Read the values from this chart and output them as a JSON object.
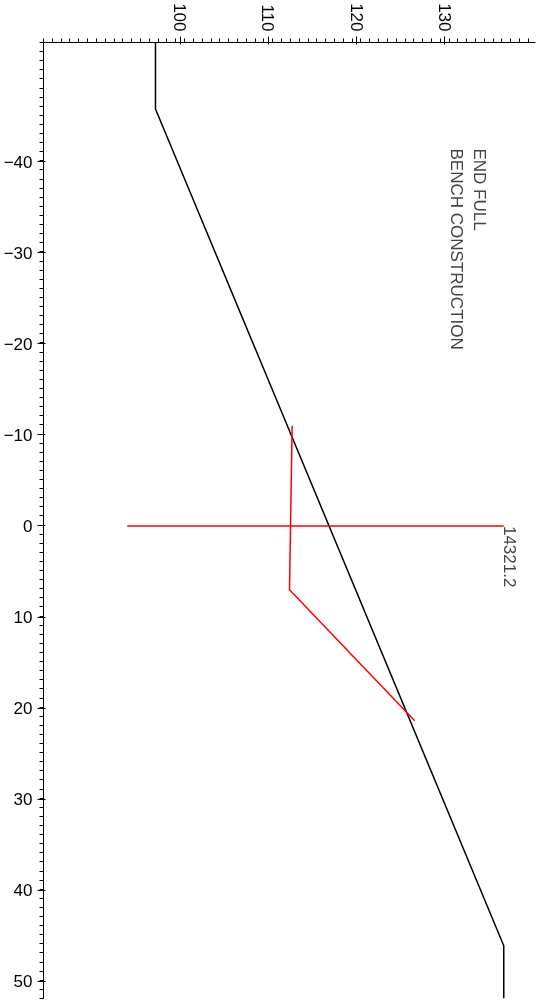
{
  "chart_data": {
    "type": "line",
    "series": [
      {
        "color": "#000000",
        "x": [
          97.2,
          97.2,
          136.7,
          136.7
        ],
        "values": [
          -53.1,
          -45.8,
          46.1,
          51.9
        ]
      },
      {
        "color": "#ff0000",
        "x": [
          112.7,
          112.4,
          126.6
        ],
        "values": [
          -11,
          7,
          21.4
        ]
      },
      {
        "color": "#ff0000",
        "x": [
          94.0,
          136.7
        ],
        "values": [
          0,
          0
        ]
      }
    ],
    "annotations": [
      "END FULL\nBENCH CONSTRUCTION",
      {
        "text": "14321.2",
        "x": 136.7,
        "y": 0
      }
    ],
    "xlim": [
      84.5,
      140.3
    ],
    "ylim": [
      51.9,
      -53.1
    ],
    "xticks": [
      100,
      110,
      120,
      130
    ],
    "yticks": [
      -40,
      -30,
      -20,
      -10,
      0,
      10,
      20,
      30,
      40,
      50
    ],
    "grid": false,
    "line_style": "solid",
    "marker": "none"
  }
}
